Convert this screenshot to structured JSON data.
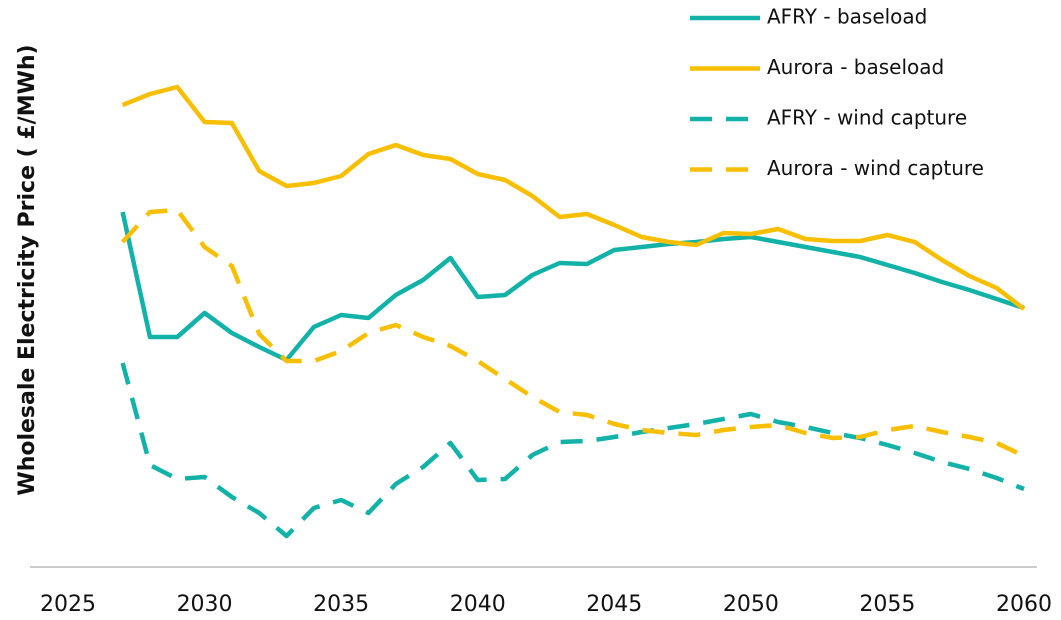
{
  "chart_data": {
    "type": "line",
    "y_label": "Wholesale Electricity Price ( £/MWh)",
    "x": [
      2027,
      2028,
      2029,
      2030,
      2031,
      2032,
      2033,
      2034,
      2035,
      2036,
      2037,
      2038,
      2039,
      2040,
      2041,
      2042,
      2043,
      2044,
      2045,
      2046,
      2047,
      2048,
      2049,
      2050,
      2051,
      2052,
      2053,
      2054,
      2055,
      2056,
      2057,
      2058,
      2059,
      2060
    ],
    "xlim": [
      2025,
      2060
    ],
    "xticks": [
      2025,
      2030,
      2035,
      2040,
      2045,
      2050,
      2055,
      2060
    ],
    "ylim": [
      0,
      107
    ],
    "grid": false,
    "legend": "top-right",
    "series": [
      {
        "name": "AFRY - baseload",
        "color": "#12b2a8",
        "style": "solid",
        "values": [
          71,
          46,
          46,
          50.8,
          46.8,
          44,
          41.4,
          48,
          50.4,
          49.8,
          54.4,
          57.4,
          61.8,
          54,
          54.4,
          58.4,
          60.8,
          60.6,
          63.4,
          64,
          64.6,
          65,
          65.6,
          66,
          65,
          64,
          63,
          62,
          60.4,
          58.8,
          57,
          55.4,
          53.6,
          51.8
        ]
      },
      {
        "name": "Aurora - baseload",
        "color": "#f7bf00",
        "style": "solid",
        "values": [
          92.4,
          94.6,
          96,
          89,
          88.8,
          79.2,
          76.2,
          76.8,
          78.2,
          82.6,
          84.4,
          82.4,
          81.6,
          78.6,
          77.4,
          74.2,
          70,
          70.6,
          68.4,
          66,
          65,
          64.4,
          66.8,
          66.6,
          67.6,
          65.6,
          65.2,
          65.2,
          66.4,
          65,
          61.4,
          58.2,
          55.8,
          51.6
        ]
      },
      {
        "name": "AFRY - wind capture",
        "color": "#12b2a8",
        "style": "dashed",
        "values": [
          40.8,
          20.4,
          17.6,
          18,
          14,
          10.8,
          6.2,
          11.8,
          13.4,
          10.8,
          16.6,
          20,
          24.8,
          17.4,
          17.6,
          22.4,
          25,
          25.2,
          26,
          27,
          27.8,
          28.6,
          29.6,
          30.6,
          29,
          28,
          26.8,
          25.8,
          24.4,
          22.8,
          21,
          19.6,
          17.8,
          15.6
        ]
      },
      {
        "name": "Aurora - wind capture",
        "color": "#f7bf00",
        "style": "dashed",
        "values": [
          65,
          71,
          71.4,
          64,
          60.2,
          46.6,
          41.2,
          41.2,
          43.2,
          46.8,
          48.4,
          46,
          44.2,
          41.2,
          37.6,
          34,
          31,
          30.4,
          28.6,
          27.4,
          26.8,
          26.4,
          27.4,
          28,
          28.4,
          26.8,
          25.8,
          26,
          27.4,
          28.2,
          27,
          26,
          24.8,
          22.2
        ]
      }
    ]
  }
}
